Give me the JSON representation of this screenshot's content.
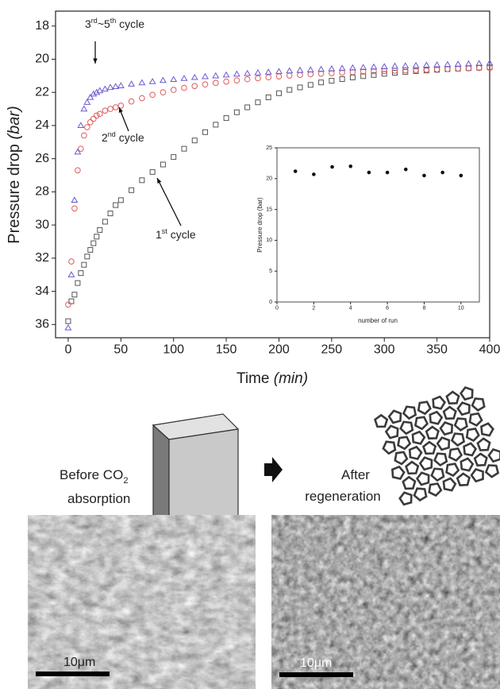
{
  "chart_data": [
    {
      "type": "scatter",
      "ylabel": "Pressure drop ",
      "ylabel_unit": "(bar)",
      "xlabel": "Time ",
      "xlabel_unit": "(min)",
      "xlim": [
        -12,
        400
      ],
      "ylim": [
        17.1,
        36.8
      ],
      "y_inverted": true,
      "xticks": [
        0,
        50,
        100,
        150,
        200,
        250,
        300,
        350,
        400
      ],
      "yticks": [
        18,
        20,
        22,
        24,
        26,
        28,
        30,
        32,
        34,
        36
      ],
      "x": [
        0,
        3,
        6,
        9,
        12,
        15,
        18,
        21,
        24,
        27,
        30,
        35,
        40,
        45,
        50,
        60,
        70,
        80,
        90,
        100,
        110,
        120,
        130,
        140,
        150,
        160,
        170,
        180,
        190,
        200,
        210,
        220,
        230,
        240,
        250,
        260,
        270,
        280,
        290,
        300,
        310,
        320,
        330,
        340,
        350,
        360,
        370,
        380,
        390,
        400
      ],
      "series": [
        {
          "name": [
            "1",
            "st",
            " cycle"
          ],
          "color": "#555555",
          "marker": "square",
          "values": [
            35.8,
            34.6,
            34.2,
            33.5,
            32.9,
            32.4,
            31.9,
            31.5,
            31.1,
            30.7,
            30.3,
            29.8,
            29.3,
            28.8,
            28.5,
            27.9,
            27.3,
            26.8,
            26.35,
            25.9,
            25.4,
            24.9,
            24.4,
            23.95,
            23.55,
            23.2,
            22.9,
            22.6,
            22.3,
            22.05,
            21.85,
            21.7,
            21.55,
            21.4,
            21.3,
            21.2,
            21.1,
            21.02,
            20.95,
            20.88,
            20.82,
            20.77,
            20.72,
            20.68,
            20.64,
            20.6,
            20.57,
            20.54,
            20.51,
            20.49
          ]
        },
        {
          "name": [
            "2",
            "nd",
            " cycle"
          ],
          "color": "#e05a5a",
          "marker": "circle",
          "values": [
            34.8,
            32.2,
            29,
            26.7,
            25.4,
            24.6,
            24.1,
            23.8,
            23.6,
            23.4,
            23.3,
            23.1,
            23,
            22.9,
            22.8,
            22.55,
            22.35,
            22.15,
            22,
            21.85,
            21.73,
            21.62,
            21.52,
            21.43,
            21.35,
            21.28,
            21.21,
            21.15,
            21.09,
            21.04,
            20.99,
            20.95,
            20.91,
            20.87,
            20.84,
            20.81,
            20.78,
            20.75,
            20.73,
            20.71,
            20.69,
            20.67,
            20.65,
            20.63,
            20.61,
            20.59,
            20.57,
            20.55,
            20.53,
            20.51
          ]
        },
        {
          "name": [
            "3",
            "rd",
            "~5",
            "th",
            " cycle"
          ],
          "color": "#6a5acd",
          "marker": "triangle",
          "values": [
            36.2,
            33,
            28.5,
            25.6,
            24,
            23,
            22.6,
            22.3,
            22.1,
            22,
            21.9,
            21.8,
            21.7,
            21.65,
            21.6,
            21.5,
            21.42,
            21.35,
            21.28,
            21.22,
            21.16,
            21.1,
            21.05,
            21,
            20.95,
            20.9,
            20.86,
            20.82,
            20.78,
            20.74,
            20.7,
            20.67,
            20.64,
            20.61,
            20.58,
            20.55,
            20.52,
            20.5,
            20.47,
            20.45,
            20.42,
            20.4,
            20.38,
            20.36,
            20.34,
            20.32,
            20.3,
            20.28,
            20.26,
            20.24
          ]
        }
      ]
    },
    {
      "type": "scatter",
      "ylabel": "Pressure drop (bar)",
      "xlabel": "number of run",
      "xlim": [
        0,
        11
      ],
      "ylim": [
        0,
        25
      ],
      "y_inverted": false,
      "xticks": [
        0,
        2,
        4,
        6,
        8,
        10
      ],
      "yticks": [
        0,
        5,
        10,
        15,
        20,
        25
      ],
      "x": [
        1,
        2,
        3,
        4,
        5,
        6,
        7,
        8,
        9,
        10
      ],
      "series": [
        {
          "color": "#111111",
          "marker": "dot",
          "values": [
            21.2,
            20.7,
            21.9,
            22,
            21,
            21,
            21.5,
            20.5,
            21,
            20.5
          ]
        }
      ]
    }
  ],
  "figure_labels": {
    "before": [
      "Before CO",
      "2",
      "absorption"
    ],
    "after": [
      "After",
      "regeneration"
    ]
  },
  "scale_bars": [
    "10μm",
    "10μm"
  ]
}
